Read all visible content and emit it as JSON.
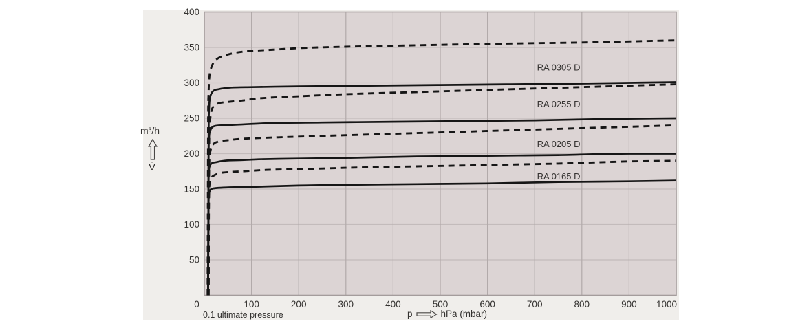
{
  "page": {
    "background": "#ffffff"
  },
  "panel": {
    "background": "#f0eeeb"
  },
  "colors": {
    "plot_background": "#dcd4d4",
    "grid_vertical": "#b2aaaa",
    "grid_horizontal": "#c3bbbb",
    "plot_border": "#a49c9c",
    "curve": "#161616",
    "text": "#343230"
  },
  "icons": {
    "y_axis_arrow": "arrow-up-outline",
    "x_axis_arrow": "arrow-right-outline"
  },
  "axis": {
    "y_unit_label": "m³/h",
    "y_symbol": "V̇",
    "x_symbol": "p",
    "x_unit_label": "hPa (mbar)",
    "origin_note": "0.1 ultimate pressure"
  },
  "chart_data": {
    "type": "line",
    "title": "",
    "xlabel": "p → hPa (mbar)",
    "ylabel": "V̇ (m³/h)",
    "xlim": [
      0,
      1000
    ],
    "ylim": [
      0,
      400
    ],
    "x_ticks": [
      0,
      100,
      200,
      300,
      400,
      500,
      600,
      700,
      800,
      900,
      1000
    ],
    "y_ticks": [
      400,
      350,
      300,
      250,
      200,
      150,
      100,
      50
    ],
    "grid": true,
    "legend_position": "inline-labels",
    "curve_labels": [
      {
        "text": "RA 0305 D",
        "p": 705,
        "v": 322
      },
      {
        "text": "RA 0255 D",
        "p": 705,
        "v": 270
      },
      {
        "text": "RA 0205 D",
        "p": 705,
        "v": 213.5
      },
      {
        "text": "RA 0165 D",
        "p": 705,
        "v": 168
      }
    ],
    "series": [
      {
        "name": "RA 0305 D",
        "line_style": "dashed",
        "points": [
          [
            7,
            0
          ],
          [
            8,
            240
          ],
          [
            9,
            285
          ],
          [
            11,
            310
          ],
          [
            15,
            322
          ],
          [
            20,
            329
          ],
          [
            30,
            335
          ],
          [
            45,
            339
          ],
          [
            70,
            343
          ],
          [
            100,
            345
          ],
          [
            150,
            347
          ],
          [
            200,
            349
          ],
          [
            300,
            351
          ],
          [
            450,
            353
          ],
          [
            600,
            355
          ],
          [
            800,
            357
          ],
          [
            1000,
            360
          ]
        ]
      },
      {
        "name": "RA 0305 D",
        "line_style": "solid",
        "points": [
          [
            8,
            0
          ],
          [
            9,
            220
          ],
          [
            10,
            262
          ],
          [
            12,
            278
          ],
          [
            15,
            285
          ],
          [
            20,
            289
          ],
          [
            30,
            291
          ],
          [
            50,
            293
          ],
          [
            100,
            294
          ],
          [
            200,
            295
          ],
          [
            350,
            296
          ],
          [
            500,
            297
          ],
          [
            650,
            298
          ],
          [
            800,
            299
          ],
          [
            900,
            300
          ],
          [
            1000,
            301
          ]
        ]
      },
      {
        "name": "RA 0255 D",
        "line_style": "dashed",
        "points": [
          [
            9,
            0
          ],
          [
            10,
            200
          ],
          [
            12,
            245
          ],
          [
            15,
            260
          ],
          [
            20,
            267
          ],
          [
            30,
            271
          ],
          [
            50,
            273
          ],
          [
            80,
            275
          ],
          [
            115,
            278
          ],
          [
            200,
            281
          ],
          [
            300,
            284
          ],
          [
            450,
            287
          ],
          [
            600,
            290
          ],
          [
            750,
            293
          ],
          [
            900,
            296
          ],
          [
            1000,
            298
          ]
        ]
      },
      {
        "name": "RA 0255 D",
        "line_style": "solid",
        "points": [
          [
            8,
            0
          ],
          [
            9,
            190
          ],
          [
            10,
            222
          ],
          [
            12,
            231
          ],
          [
            15,
            236
          ],
          [
            22,
            239
          ],
          [
            40,
            240
          ],
          [
            70,
            241
          ],
          [
            135,
            243
          ],
          [
            250,
            244
          ],
          [
            400,
            245
          ],
          [
            550,
            246
          ],
          [
            700,
            247
          ],
          [
            850,
            249
          ],
          [
            1000,
            250
          ]
        ]
      },
      {
        "name": "RA 0205 D",
        "line_style": "dashed",
        "points": [
          [
            9,
            0
          ],
          [
            10,
            170
          ],
          [
            12,
            200
          ],
          [
            15,
            209
          ],
          [
            20,
            214
          ],
          [
            30,
            217
          ],
          [
            50,
            219
          ],
          [
            80,
            221
          ],
          [
            115,
            222
          ],
          [
            200,
            224
          ],
          [
            300,
            226
          ],
          [
            450,
            229
          ],
          [
            600,
            232
          ],
          [
            750,
            235
          ],
          [
            900,
            238
          ],
          [
            1000,
            240
          ]
        ]
      },
      {
        "name": "RA 0205 D",
        "line_style": "solid",
        "points": [
          [
            8,
            0
          ],
          [
            9,
            160
          ],
          [
            10,
            178
          ],
          [
            12,
            183
          ],
          [
            15,
            186
          ],
          [
            25,
            188
          ],
          [
            42,
            190
          ],
          [
            80,
            191
          ],
          [
            115,
            192
          ],
          [
            200,
            193
          ],
          [
            300,
            194
          ],
          [
            450,
            196
          ],
          [
            600,
            197
          ],
          [
            750,
            198
          ],
          [
            900,
            200
          ],
          [
            1000,
            200
          ]
        ]
      },
      {
        "name": "RA 0165 D",
        "line_style": "dashed",
        "points": [
          [
            9,
            0
          ],
          [
            10,
            140
          ],
          [
            12,
            160
          ],
          [
            15,
            166
          ],
          [
            20,
            169
          ],
          [
            30,
            172
          ],
          [
            52,
            174
          ],
          [
            80,
            175
          ],
          [
            130,
            177
          ],
          [
            200,
            178
          ],
          [
            300,
            180
          ],
          [
            450,
            182
          ],
          [
            600,
            184
          ],
          [
            750,
            186
          ],
          [
            900,
            189
          ],
          [
            1000,
            190
          ]
        ]
      },
      {
        "name": "RA 0165 D",
        "line_style": "solid",
        "points": [
          [
            8,
            0
          ],
          [
            9,
            130
          ],
          [
            10,
            143
          ],
          [
            12,
            148
          ],
          [
            15,
            150
          ],
          [
            20,
            151
          ],
          [
            40,
            152
          ],
          [
            96,
            153
          ],
          [
            200,
            155
          ],
          [
            300,
            156
          ],
          [
            450,
            157
          ],
          [
            600,
            158
          ],
          [
            750,
            160
          ],
          [
            900,
            161
          ],
          [
            1000,
            162
          ]
        ]
      }
    ]
  }
}
